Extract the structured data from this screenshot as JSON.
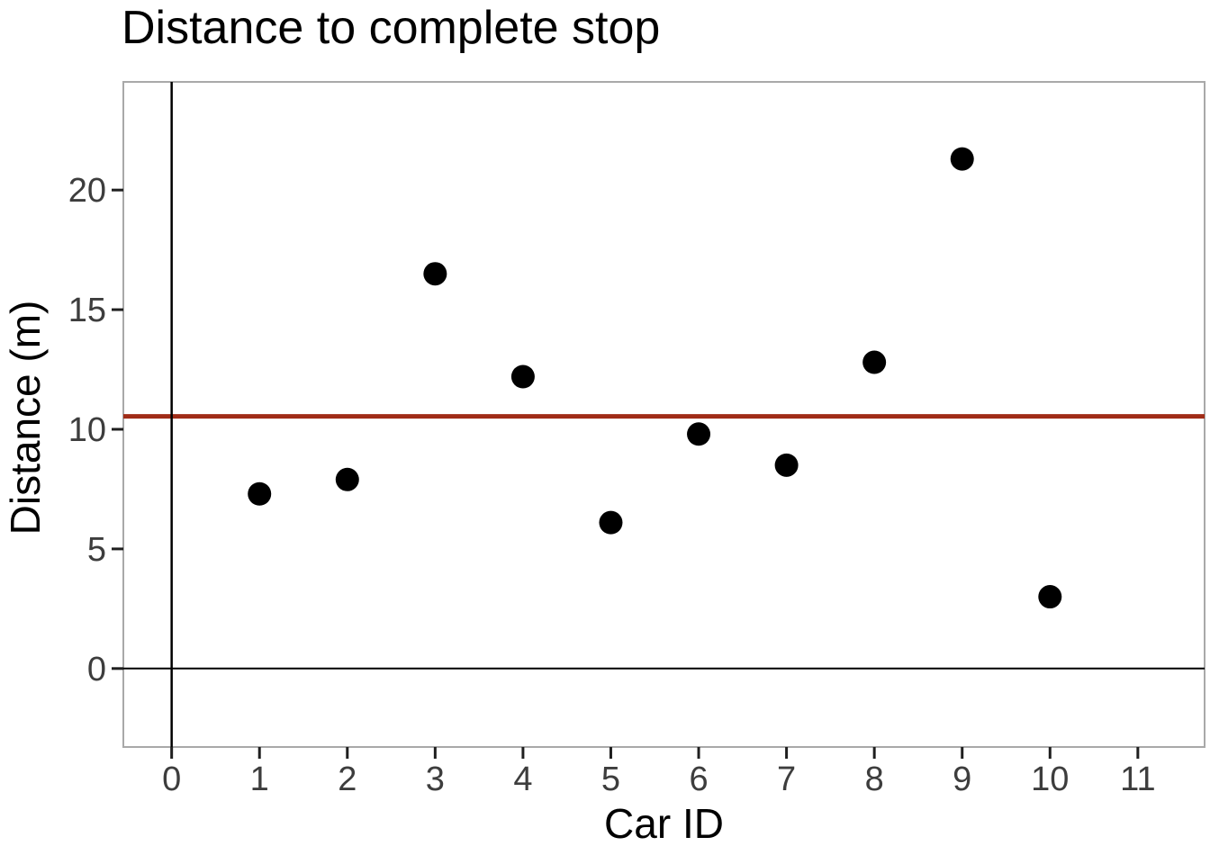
{
  "page": {
    "background": "#ffffff"
  },
  "chart_data": {
    "type": "scatter",
    "title": "Distance to complete stop",
    "xlabel": "Car ID",
    "ylabel": "Distance (m)",
    "x": [
      1,
      2,
      3,
      4,
      5,
      6,
      7,
      8,
      9,
      10
    ],
    "y": [
      7.3,
      7.9,
      16.5,
      12.2,
      6.1,
      9.8,
      8.5,
      12.8,
      21.3,
      3.0
    ],
    "xlim": [
      -0.55,
      11.76
    ],
    "ylim": [
      -3.28,
      24.52
    ],
    "xticks": [
      0,
      1,
      2,
      3,
      4,
      5,
      6,
      7,
      8,
      9,
      10,
      11
    ],
    "yticks": [
      0,
      5,
      10,
      15,
      20
    ],
    "grid": false,
    "legend": false,
    "point_color": "#000000",
    "point_radius": 13,
    "reference_lines": [
      {
        "name": "mean-line",
        "orientation": "horizontal",
        "value": 10.54,
        "color": "#a02c17",
        "width": 5
      },
      {
        "name": "x-zero-line",
        "orientation": "vertical",
        "value": 0,
        "color": "#000000",
        "width": 2.5
      },
      {
        "name": "y-zero-line",
        "orientation": "horizontal",
        "value": 0,
        "color": "#000000",
        "width": 2
      }
    ]
  },
  "style": {
    "panel_border_color": "#a9a9a9",
    "panel_fill": "#ffffff",
    "tick_label_color": "#3d3d3d",
    "tick_mark_color": "#1f1f1f",
    "text_color": "#000000"
  }
}
